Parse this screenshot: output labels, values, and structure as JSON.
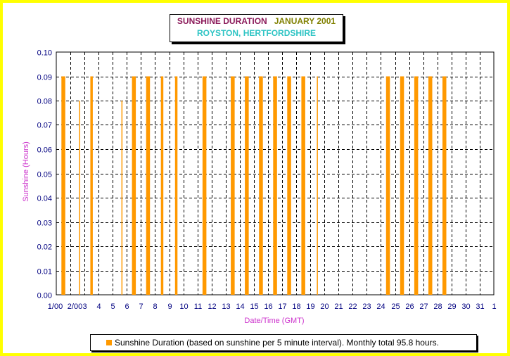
{
  "title": {
    "main": "SUNSHINE DURATION",
    "date": "JANUARY 2001",
    "location": "ROYSTON, HERTFORDSHIRE"
  },
  "legend": {
    "label": "Sunshine Duration (based on sunshine per 5 minute interval). Monthly total 95.8 hours."
  },
  "colors": {
    "bar": "#ff9900",
    "grid": "#000000",
    "tick_text": "#000080",
    "axis_title": "#cc33cc",
    "background": "#ffff00"
  },
  "chart_data": {
    "type": "bar",
    "xlabel": "Date/Time (GMT)",
    "ylabel": "Sunshine (Hours)",
    "ylim": [
      0,
      0.1
    ],
    "yticks": [
      "0.00",
      "0.01",
      "0.02",
      "0.03",
      "0.04",
      "0.05",
      "0.06",
      "0.07",
      "0.08",
      "0.09",
      "0.10"
    ],
    "xticks": [
      "1/00",
      "2/00",
      "3",
      "4",
      "5",
      "6",
      "7",
      "8",
      "9",
      "10",
      "11",
      "12",
      "13",
      "14",
      "15",
      "16",
      "17",
      "18",
      "19",
      "20",
      "21",
      "22",
      "23",
      "24",
      "25",
      "26",
      "27",
      "28",
      "29",
      "30",
      "31",
      "1"
    ],
    "xlim_days": [
      1,
      32
    ],
    "grid": true,
    "legend_position": "bottom",
    "series": [
      {
        "name": "Sunshine Duration (based on sunshine per 5 minute interval). Monthly total 95.8 hours.",
        "bars": [
          {
            "day": 1.5,
            "value": 0.09,
            "strength": 3
          },
          {
            "day": 2.65,
            "value": 0.08,
            "strength": 1
          },
          {
            "day": 3.5,
            "value": 0.09,
            "strength": 2
          },
          {
            "day": 5.65,
            "value": 0.08,
            "strength": 1
          },
          {
            "day": 6.5,
            "value": 0.09,
            "strength": 3
          },
          {
            "day": 7.5,
            "value": 0.09,
            "strength": 3
          },
          {
            "day": 8.5,
            "value": 0.09,
            "strength": 2
          },
          {
            "day": 9.5,
            "value": 0.09,
            "strength": 2
          },
          {
            "day": 11.5,
            "value": 0.09,
            "strength": 3
          },
          {
            "day": 13.5,
            "value": 0.09,
            "strength": 3
          },
          {
            "day": 14.5,
            "value": 0.09,
            "strength": 3
          },
          {
            "day": 15.5,
            "value": 0.09,
            "strength": 3
          },
          {
            "day": 16.5,
            "value": 0.09,
            "strength": 3
          },
          {
            "day": 17.5,
            "value": 0.09,
            "strength": 3
          },
          {
            "day": 18.5,
            "value": 0.09,
            "strength": 3
          },
          {
            "day": 19.5,
            "value": 0.09,
            "strength": 1
          },
          {
            "day": 24.5,
            "value": 0.09,
            "strength": 3
          },
          {
            "day": 25.5,
            "value": 0.09,
            "strength": 3
          },
          {
            "day": 26.5,
            "value": 0.09,
            "strength": 3
          },
          {
            "day": 27.5,
            "value": 0.09,
            "strength": 3
          },
          {
            "day": 28.5,
            "value": 0.09,
            "strength": 3
          }
        ]
      }
    ]
  }
}
